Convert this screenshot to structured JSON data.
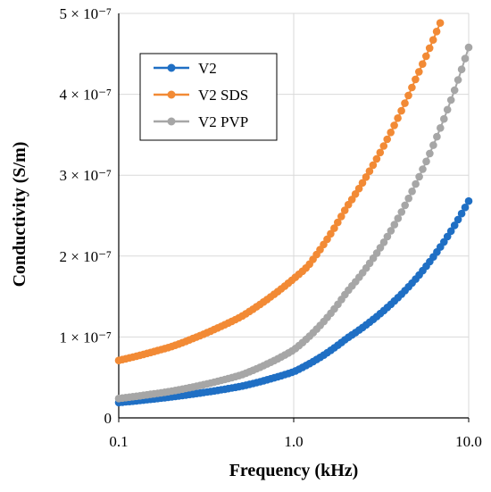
{
  "chart_data": {
    "type": "scatter",
    "title": "",
    "xlabel": "Frequency (kHz)",
    "ylabel": "Conductivity (S/m)",
    "x_scale": "log",
    "xlim": [
      0.1,
      10.0
    ],
    "ylim": [
      0,
      5e-07
    ],
    "x_ticks": [
      {
        "value": 0.1,
        "label": "0.1"
      },
      {
        "value": 1.0,
        "label": "1.0"
      },
      {
        "value": 10.0,
        "label": "10.0"
      }
    ],
    "y_ticks": [
      {
        "value": 0,
        "label": "0"
      },
      {
        "value": 1e-07,
        "label": "1 × 10⁻⁷"
      },
      {
        "value": 2e-07,
        "label": "2 × 10⁻⁷"
      },
      {
        "value": 3e-07,
        "label": "3 × 10⁻⁷"
      },
      {
        "value": 4e-07,
        "label": "4 × 10⁻⁷"
      },
      {
        "value": 5e-07,
        "label": "5 × 10⁻⁷"
      }
    ],
    "grid": true,
    "legend_position": "top-left",
    "series": [
      {
        "name": "V2",
        "color": "#1f6fc4",
        "points": [
          [
            0.1,
            1.9e-08
          ],
          [
            0.2,
            2.6e-08
          ],
          [
            0.5,
            3.9e-08
          ],
          [
            1.0,
            5.7e-08
          ],
          [
            2.0,
            9.8e-08
          ],
          [
            5.0,
            1.72e-07
          ],
          [
            10.0,
            2.68e-07
          ]
        ]
      },
      {
        "name": "V2 SDS",
        "color": "#f28a35",
        "points": [
          [
            0.1,
            7.1e-08
          ],
          [
            0.2,
            8.8e-08
          ],
          [
            0.5,
            1.25e-07
          ],
          [
            1.0,
            1.72e-07
          ],
          [
            1.2,
            1.87e-07
          ],
          [
            2.0,
            2.6e-07
          ],
          [
            5.0,
            4.2e-07
          ],
          [
            7.2,
            4.99e-07
          ]
        ]
      },
      {
        "name": "V2 PVP",
        "color": "#a6a6a6",
        "points": [
          [
            0.1,
            2.4e-08
          ],
          [
            0.2,
            3.3e-08
          ],
          [
            0.5,
            5.3e-08
          ],
          [
            1.0,
            8.4e-08
          ],
          [
            2.0,
            1.55e-07
          ],
          [
            5.0,
            2.9e-07
          ],
          [
            10.0,
            4.58e-07
          ]
        ]
      }
    ]
  }
}
